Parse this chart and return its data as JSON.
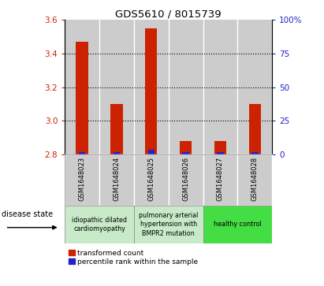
{
  "title": "GDS5610 / 8015739",
  "samples": [
    "GSM1648023",
    "GSM1648024",
    "GSM1648025",
    "GSM1648026",
    "GSM1648027",
    "GSM1648028"
  ],
  "red_values": [
    3.47,
    3.1,
    3.55,
    2.88,
    2.88,
    3.1
  ],
  "blue_values": [
    2.0,
    2.0,
    3.5,
    2.0,
    2.0,
    2.0
  ],
  "baseline": 2.8,
  "ylim_left": [
    2.8,
    3.6
  ],
  "ylim_right": [
    0,
    100
  ],
  "yticks_left": [
    2.8,
    3.0,
    3.2,
    3.4,
    3.6
  ],
  "yticks_right": [
    0,
    25,
    50,
    75,
    100
  ],
  "bar_bg_color": "#cccccc",
  "red_color": "#cc2200",
  "blue_color": "#2222cc",
  "left_tick_color": "#cc2200",
  "right_tick_color": "#2222cc",
  "disease_state_label": "disease state",
  "legend_red": "transformed count",
  "legend_blue": "percentile rank within the sample",
  "group_spans": [
    {
      "start": 0,
      "end": 1,
      "color": "#c8eac8",
      "label": "idiopathic dilated\ncardiomyopathy"
    },
    {
      "start": 2,
      "end": 3,
      "color": "#c8eac8",
      "label": "pulmonary arterial\nhypertension with\nBMPR2 mutation"
    },
    {
      "start": 4,
      "end": 5,
      "color": "#44dd44",
      "label": "healthy control"
    }
  ]
}
